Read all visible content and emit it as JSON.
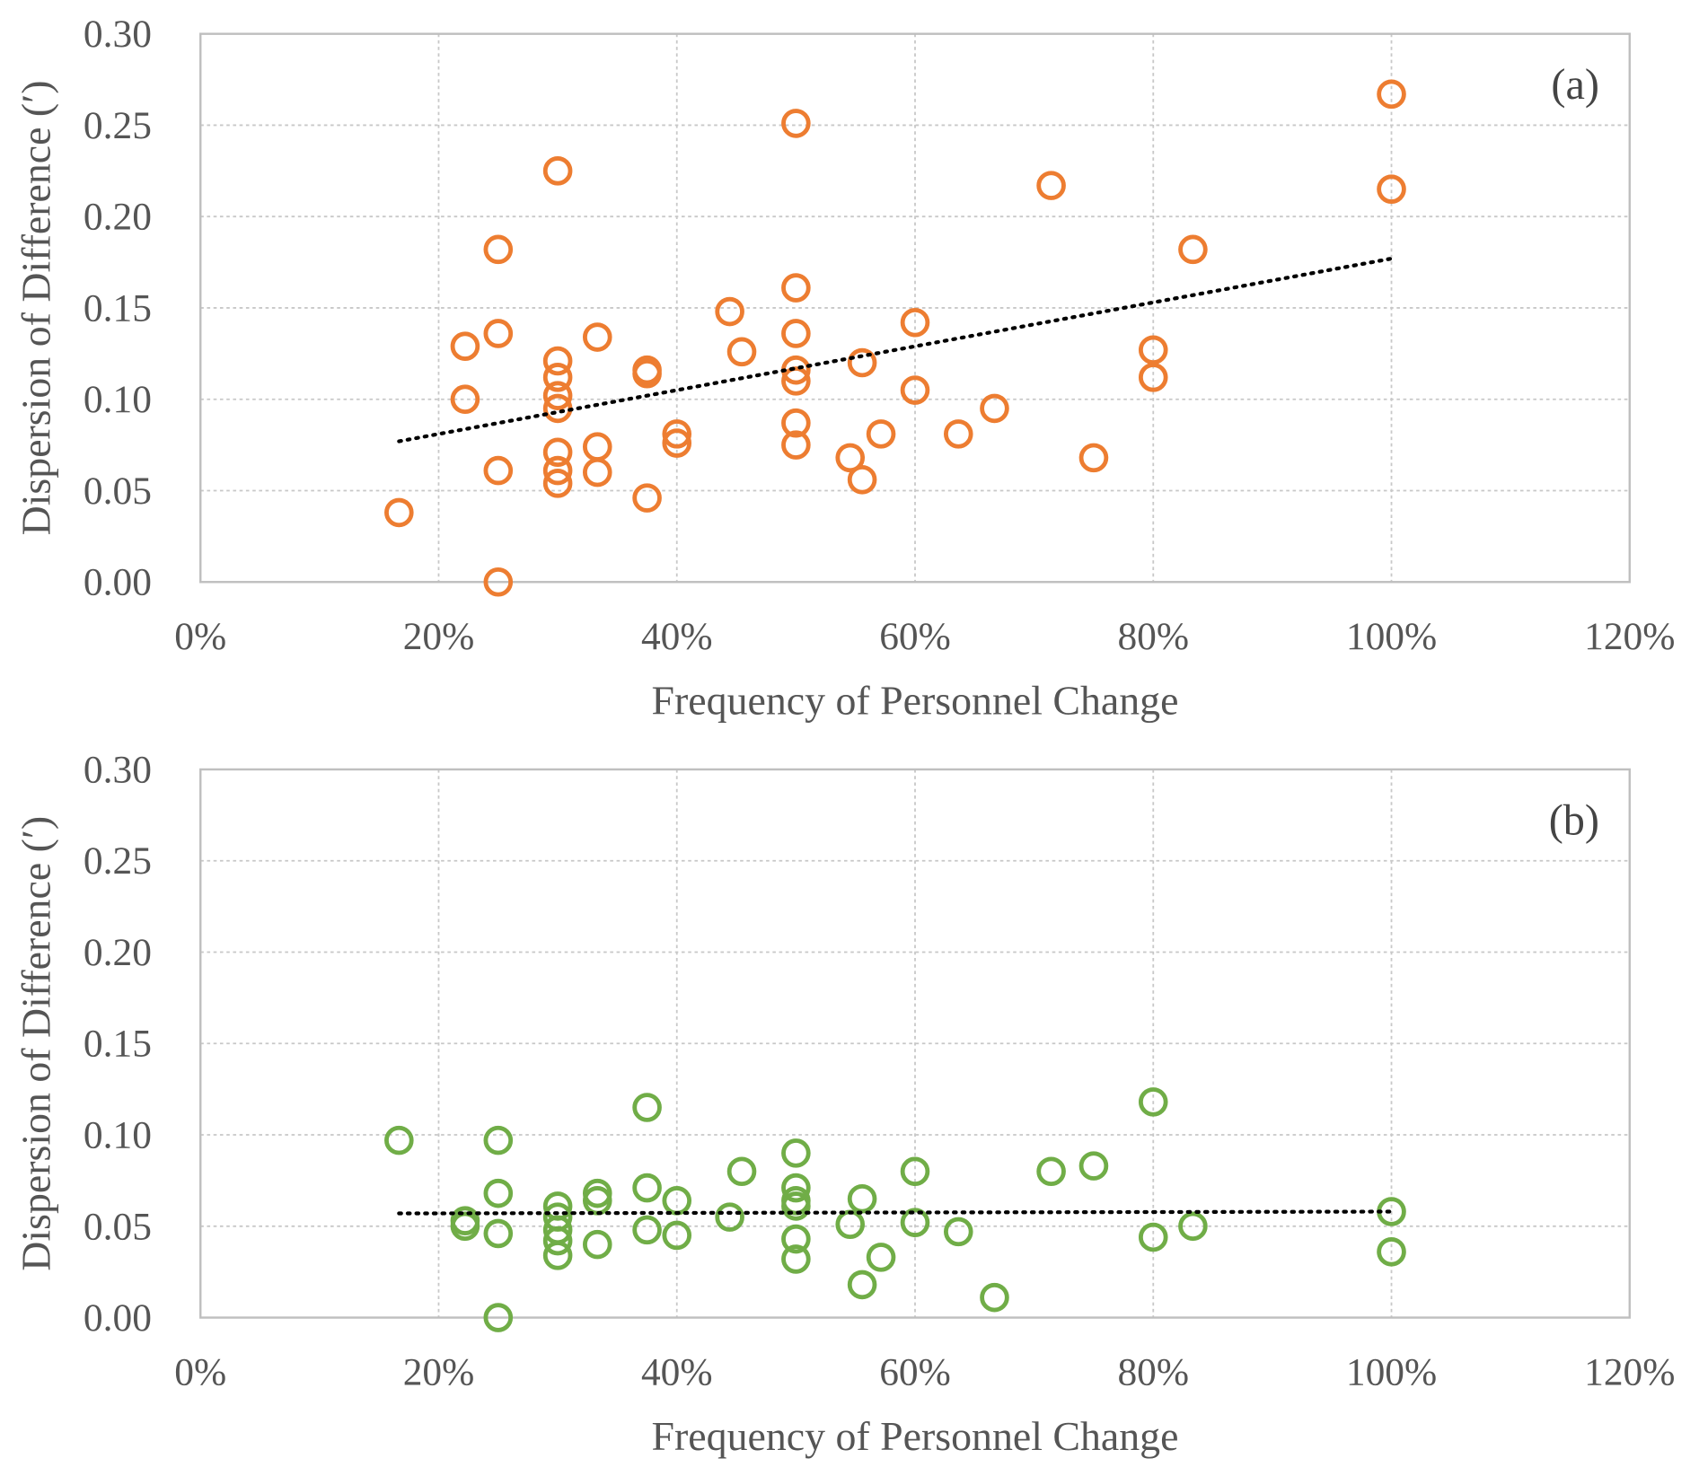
{
  "chart_data": [
    {
      "type": "scatter",
      "panel_label": "(a)",
      "xlabel": "Frequency of Personnel Change",
      "ylabel": "Dispersion of Difference (′)",
      "xlim": [
        0,
        1.2
      ],
      "ylim": [
        0,
        0.3
      ],
      "xticks": [
        "0%",
        "20%",
        "40%",
        "60%",
        "80%",
        "100%",
        "120%"
      ],
      "yticks": [
        "0.00",
        "0.05",
        "0.10",
        "0.15",
        "0.20",
        "0.25",
        "0.30"
      ],
      "grid": true,
      "marker_color": "#ED7D31",
      "trendline": {
        "style": "dotted",
        "color": "#000000",
        "x": [
          0.1667,
          1.0
        ],
        "y": [
          0.077,
          0.177
        ]
      },
      "points": [
        [
          0.1667,
          0.038
        ],
        [
          0.2222,
          0.129
        ],
        [
          0.2222,
          0.1
        ],
        [
          0.25,
          0.182
        ],
        [
          0.25,
          0.136
        ],
        [
          0.25,
          0.061
        ],
        [
          0.25,
          0.0
        ],
        [
          0.3,
          0.225
        ],
        [
          0.3,
          0.121
        ],
        [
          0.3,
          0.112
        ],
        [
          0.3,
          0.102
        ],
        [
          0.3,
          0.095
        ],
        [
          0.3,
          0.071
        ],
        [
          0.3,
          0.061
        ],
        [
          0.3,
          0.054
        ],
        [
          0.3333,
          0.134
        ],
        [
          0.3333,
          0.074
        ],
        [
          0.3333,
          0.06
        ],
        [
          0.375,
          0.116
        ],
        [
          0.375,
          0.114
        ],
        [
          0.375,
          0.046
        ],
        [
          0.4,
          0.081
        ],
        [
          0.4,
          0.076
        ],
        [
          0.4444,
          0.148
        ],
        [
          0.4545,
          0.126
        ],
        [
          0.5,
          0.251
        ],
        [
          0.5,
          0.161
        ],
        [
          0.5,
          0.136
        ],
        [
          0.5,
          0.116
        ],
        [
          0.5,
          0.11
        ],
        [
          0.5,
          0.087
        ],
        [
          0.5,
          0.075
        ],
        [
          0.5455,
          0.068
        ],
        [
          0.5556,
          0.12
        ],
        [
          0.5556,
          0.056
        ],
        [
          0.5714,
          0.081
        ],
        [
          0.6,
          0.142
        ],
        [
          0.6,
          0.105
        ],
        [
          0.6364,
          0.081
        ],
        [
          0.6667,
          0.095
        ],
        [
          0.7143,
          0.217
        ],
        [
          0.75,
          0.068
        ],
        [
          0.8,
          0.127
        ],
        [
          0.8,
          0.112
        ],
        [
          0.8333,
          0.182
        ],
        [
          1.0,
          0.267
        ],
        [
          1.0,
          0.215
        ]
      ]
    },
    {
      "type": "scatter",
      "panel_label": "(b)",
      "xlabel": "Frequency of Personnel Change",
      "ylabel": "Dispersion of Difference (′)",
      "xlim": [
        0,
        1.2
      ],
      "ylim": [
        0,
        0.3
      ],
      "xticks": [
        "0%",
        "20%",
        "40%",
        "60%",
        "80%",
        "100%",
        "120%"
      ],
      "yticks": [
        "0.00",
        "0.05",
        "0.10",
        "0.15",
        "0.20",
        "0.25",
        "0.30"
      ],
      "grid": true,
      "marker_color": "#70AD47",
      "trendline": {
        "style": "dotted",
        "color": "#000000",
        "x": [
          0.1667,
          1.0
        ],
        "y": [
          0.057,
          0.058
        ]
      },
      "points": [
        [
          0.1667,
          0.097
        ],
        [
          0.2222,
          0.053
        ],
        [
          0.2222,
          0.05
        ],
        [
          0.25,
          0.097
        ],
        [
          0.25,
          0.068
        ],
        [
          0.25,
          0.046
        ],
        [
          0.25,
          0.0
        ],
        [
          0.3,
          0.061
        ],
        [
          0.3,
          0.055
        ],
        [
          0.3,
          0.048
        ],
        [
          0.3,
          0.042
        ],
        [
          0.3,
          0.034
        ],
        [
          0.3333,
          0.068
        ],
        [
          0.3333,
          0.064
        ],
        [
          0.3333,
          0.04
        ],
        [
          0.375,
          0.115
        ],
        [
          0.375,
          0.071
        ],
        [
          0.375,
          0.048
        ],
        [
          0.4,
          0.064
        ],
        [
          0.4,
          0.045
        ],
        [
          0.4444,
          0.055
        ],
        [
          0.4545,
          0.08
        ],
        [
          0.5,
          0.09
        ],
        [
          0.5,
          0.071
        ],
        [
          0.5,
          0.064
        ],
        [
          0.5,
          0.061
        ],
        [
          0.5,
          0.043
        ],
        [
          0.5,
          0.032
        ],
        [
          0.5455,
          0.051
        ],
        [
          0.5556,
          0.065
        ],
        [
          0.5556,
          0.018
        ],
        [
          0.5714,
          0.033
        ],
        [
          0.6,
          0.08
        ],
        [
          0.6,
          0.052
        ],
        [
          0.6364,
          0.047
        ],
        [
          0.6667,
          0.011
        ],
        [
          0.7143,
          0.08
        ],
        [
          0.75,
          0.083
        ],
        [
          0.8,
          0.118
        ],
        [
          0.8,
          0.044
        ],
        [
          0.8333,
          0.05
        ],
        [
          1.0,
          0.058
        ],
        [
          1.0,
          0.036
        ]
      ]
    }
  ]
}
